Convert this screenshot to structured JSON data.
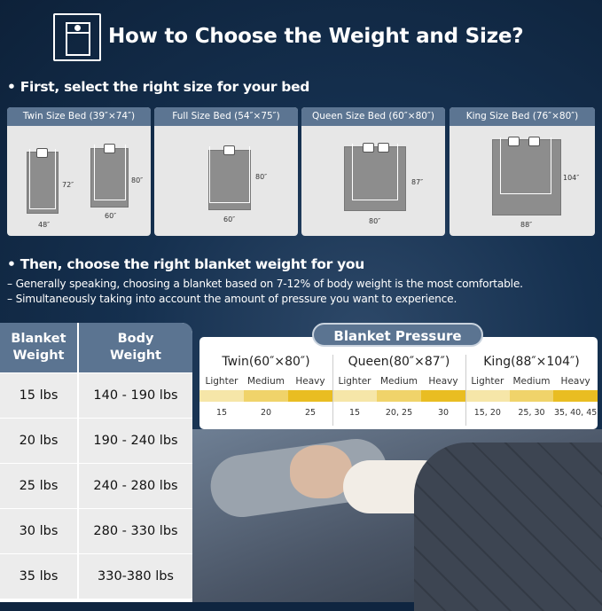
{
  "header": {
    "title": "How to Choose the Weight and Size?",
    "icon": "bed-icon"
  },
  "step1": {
    "heading": "• First, select the right size for your bed"
  },
  "beds": [
    {
      "label": "Twin Size Bed (39″×74″)",
      "dims": [
        {
          "w": "48″",
          "h": "72″"
        },
        {
          "w": "60″",
          "h": "80″"
        }
      ]
    },
    {
      "label": "Full Size Bed (54″×75″)",
      "dims": [
        {
          "w": "60″",
          "h": "80″"
        }
      ]
    },
    {
      "label": "Queen Size Bed (60″×80″)",
      "dims": [
        {
          "w": "80″",
          "h": "87″"
        }
      ]
    },
    {
      "label": "King Size Bed (76″×80″)",
      "dims": [
        {
          "w": "88″",
          "h": "104″"
        }
      ]
    }
  ],
  "step2": {
    "heading": "• Then, choose the right blanket weight for you",
    "lines": [
      "– Generally speaking, choosing a blanket based on 7-12% of body weight is the most comfortable.",
      "– Simultaneously taking into account the amount of pressure you want to experience."
    ]
  },
  "weight_table": {
    "headers": [
      "Blanket Weight",
      "Body Weight"
    ],
    "rows": [
      [
        "15 lbs",
        "140 - 190 lbs"
      ],
      [
        "20 lbs",
        "190 - 240 lbs"
      ],
      [
        "25 lbs",
        "240 - 280 lbs"
      ],
      [
        "30 lbs",
        "280 - 330 lbs"
      ],
      [
        "35 lbs",
        "330-380 lbs"
      ]
    ]
  },
  "pressure": {
    "title": "Blanket Pressure",
    "levels": [
      "Lighter",
      "Medium",
      "Heavy"
    ],
    "level_colors": [
      "#f6e6a8",
      "#f0d36a",
      "#e9bd22"
    ],
    "groups": [
      {
        "name": "Twin(60″×80″)",
        "values": [
          "15",
          "20",
          "25"
        ]
      },
      {
        "name": "Queen(80″×87″)",
        "values": [
          "15",
          "20, 25",
          "30"
        ]
      },
      {
        "name": "King(88″×104″)",
        "values": [
          "15, 20",
          "25, 30",
          "35, 40, 45"
        ]
      }
    ]
  },
  "colors": {
    "background": "#0f2540",
    "accent": "#5b7491"
  }
}
